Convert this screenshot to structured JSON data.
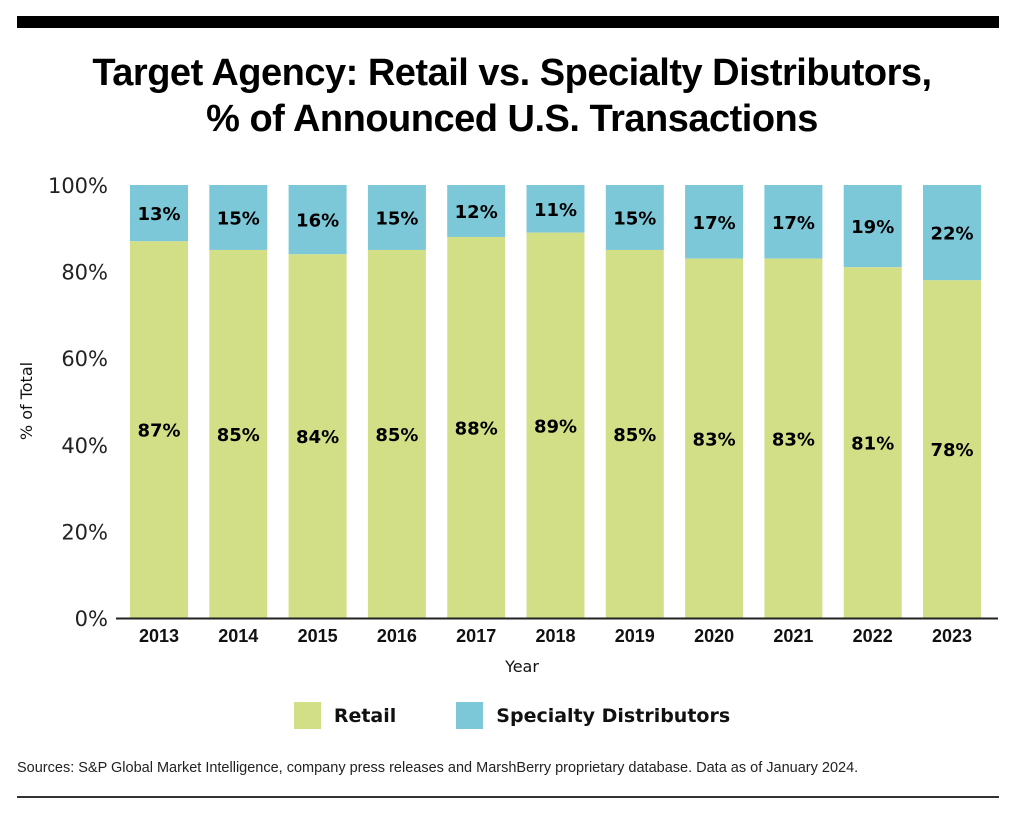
{
  "colors": {
    "retail": "#d3df87",
    "specialty": "#7cc7d8",
    "axis": "#222222"
  },
  "chart_data": {
    "type": "bar",
    "stacked": true,
    "title": "Target Agency: Retail vs. Specialty Distributors, % of Announced U.S. Transactions",
    "title_lines": [
      "Target Agency: Retail vs. Specialty Distributors,",
      "% of Announced U.S. Transactions"
    ],
    "xlabel": "Year",
    "ylabel": "% of Total",
    "ylim": [
      0,
      100
    ],
    "yticks": [
      0,
      20,
      40,
      60,
      80,
      100
    ],
    "ytick_labels": [
      "0%",
      "20%",
      "40%",
      "60%",
      "80%",
      "100%"
    ],
    "grid": false,
    "categories": [
      "2013",
      "2014",
      "2015",
      "2016",
      "2017",
      "2018",
      "2019",
      "2020",
      "2021",
      "2022",
      "2023"
    ],
    "series": [
      {
        "name": "Retail",
        "values": [
          87,
          85,
          84,
          85,
          88,
          89,
          85,
          83,
          83,
          81,
          78
        ]
      },
      {
        "name": "Specialty Distributors",
        "values": [
          13,
          15,
          16,
          15,
          12,
          11,
          15,
          17,
          17,
          19,
          22
        ]
      }
    ],
    "data_labels": true,
    "legend": {
      "placement": "bottom-center",
      "entries": [
        "Retail",
        "Specialty Distributors"
      ]
    }
  },
  "source_note": "Sources: S&P Global Market Intelligence, company press releases and MarshBerry proprietary database. Data as of January 2024."
}
